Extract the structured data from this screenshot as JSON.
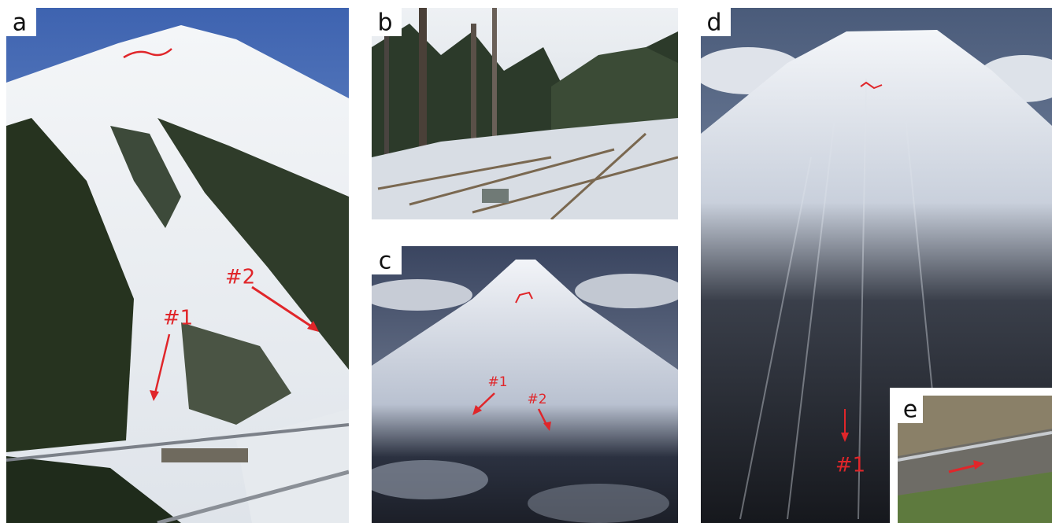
{
  "panels": [
    {
      "label": "a",
      "annotations": [
        "#2",
        "#1"
      ]
    },
    {
      "label": "b"
    },
    {
      "label": "c",
      "annotations": [
        "#1",
        "#2"
      ]
    },
    {
      "label": "d",
      "annotations": [
        "#1"
      ]
    },
    {
      "label": "e"
    }
  ]
}
